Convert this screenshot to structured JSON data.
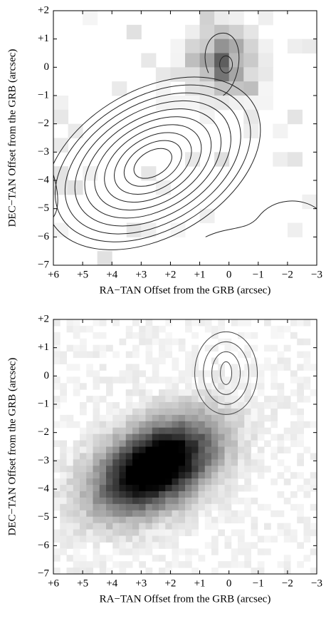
{
  "chart_data": [
    {
      "type": "image",
      "xlabel": "RA−TAN Offset from the GRB (arcsec)",
      "ylabel": "DEC−TAN Offset from the GRB (arcsec)",
      "xlim": [
        6,
        -3
      ],
      "ylim": [
        -7,
        2
      ],
      "xticks": [
        {
          "value": 6,
          "label": "+6"
        },
        {
          "value": 5,
          "label": "+5"
        },
        {
          "value": 4,
          "label": "+4"
        },
        {
          "value": 3,
          "label": "+3"
        },
        {
          "value": 2,
          "label": "+2"
        },
        {
          "value": 1,
          "label": "+1"
        },
        0,
        {
          "value": -1,
          "label": "−1"
        },
        {
          "value": -2,
          "label": "−2"
        },
        {
          "value": -3,
          "label": "−3"
        }
      ],
      "yticks": [
        {
          "value": 2,
          "label": "+2"
        },
        {
          "value": 1,
          "label": "+1"
        },
        0,
        {
          "value": -1,
          "label": "−1"
        },
        {
          "value": -2,
          "label": "−2"
        },
        {
          "value": -3,
          "label": "−3"
        },
        {
          "value": -4,
          "label": "−4"
        },
        {
          "value": -5,
          "label": "−5"
        },
        {
          "value": -6,
          "label": "−6"
        },
        {
          "value": -7,
          "label": "−7"
        }
      ]
    },
    {
      "type": "image",
      "xlabel": "RA−TAN Offset from the GRB (arcsec)",
      "ylabel": "DEC−TAN Offset from the GRB (arcsec)",
      "xlim": [
        6,
        -3
      ],
      "ylim": [
        -7,
        2
      ],
      "xticks": [
        {
          "value": 6,
          "label": "+6"
        },
        {
          "value": 5,
          "label": "+5"
        },
        {
          "value": 4,
          "label": "+4"
        },
        {
          "value": 3,
          "label": "+3"
        },
        {
          "value": 2,
          "label": "+2"
        },
        {
          "value": 1,
          "label": "+1"
        },
        0,
        {
          "value": -1,
          "label": "−1"
        },
        {
          "value": -2,
          "label": "−2"
        },
        {
          "value": -3,
          "label": "−3"
        }
      ],
      "yticks": [
        {
          "value": 2,
          "label": "+2"
        },
        {
          "value": 1,
          "label": "+1"
        },
        0,
        {
          "value": -1,
          "label": "−1"
        },
        {
          "value": -2,
          "label": "−2"
        },
        {
          "value": -3,
          "label": "−3"
        },
        {
          "value": -4,
          "label": "−4"
        },
        {
          "value": -5,
          "label": "−5"
        },
        {
          "value": -6,
          "label": "−6"
        },
        {
          "value": -7,
          "label": "−7"
        }
      ]
    }
  ]
}
